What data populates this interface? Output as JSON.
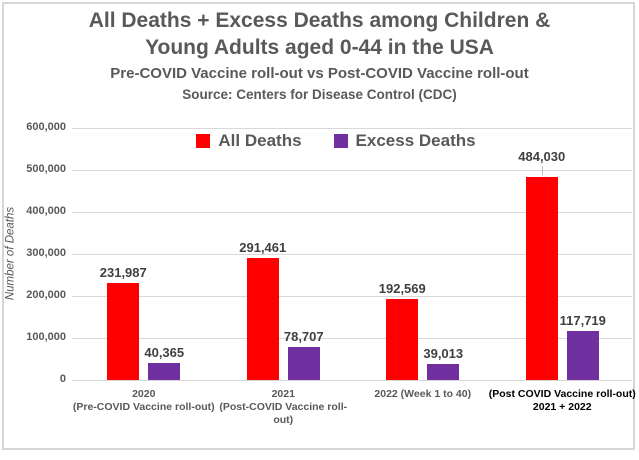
{
  "chart_data": {
    "type": "bar",
    "title": "All Deaths + Excess Deaths among Children & Young Adults aged 0-44 in the USA",
    "title_lines": [
      "All Deaths + Excess Deaths among Children &",
      "Young Adults aged 0-44 in the USA"
    ],
    "subtitle": "Pre-COVID Vaccine roll-out vs Post-COVID Vaccine roll-out",
    "source": "Source: Centers for Disease Control (CDC)",
    "ylabel": "Number of Deaths",
    "ylim": [
      0,
      600000
    ],
    "ytick_step": 100000,
    "grid": true,
    "legend_position": "top-center",
    "legend": [
      {
        "label": "All Deaths",
        "color": "#FF0000"
      },
      {
        "label": "Excess Deaths",
        "color": "#7030A0"
      }
    ],
    "categories": [
      {
        "lines": [
          "2020",
          "(Pre-COVID Vaccine roll-out)"
        ],
        "emphasis": false
      },
      {
        "lines": [
          "2021",
          "(Post-COVID Vaccine roll-",
          "out)"
        ],
        "emphasis": false
      },
      {
        "lines": [
          "2022 (Week 1 to 40)"
        ],
        "emphasis": false
      },
      {
        "lines": [
          "(Post COVID Vaccine roll-out)",
          "2021 + 2022"
        ],
        "emphasis": true
      }
    ],
    "series": [
      {
        "name": "All Deaths",
        "color": "#FF0000",
        "values": [
          231987,
          291461,
          192569,
          484030
        ],
        "labels": [
          "231,987",
          "291,461",
          "192,569",
          "484,030"
        ],
        "label_leader_index": 3
      },
      {
        "name": "Excess Deaths",
        "color": "#7030A0",
        "values": [
          40365,
          78707,
          39013,
          117719
        ],
        "labels": [
          "40,365",
          "78,707",
          "39,013",
          "117,719"
        ],
        "label_leader_index": -1
      }
    ],
    "colors": {
      "title_text": "#595959",
      "axis_text": "#595959",
      "data_label_text": "#404040",
      "category_text": "#595959",
      "emphasis_text": "#000000",
      "gridline": "#d9d9d9",
      "frame_border": "#d6d6d6",
      "background": "#ffffff"
    }
  }
}
